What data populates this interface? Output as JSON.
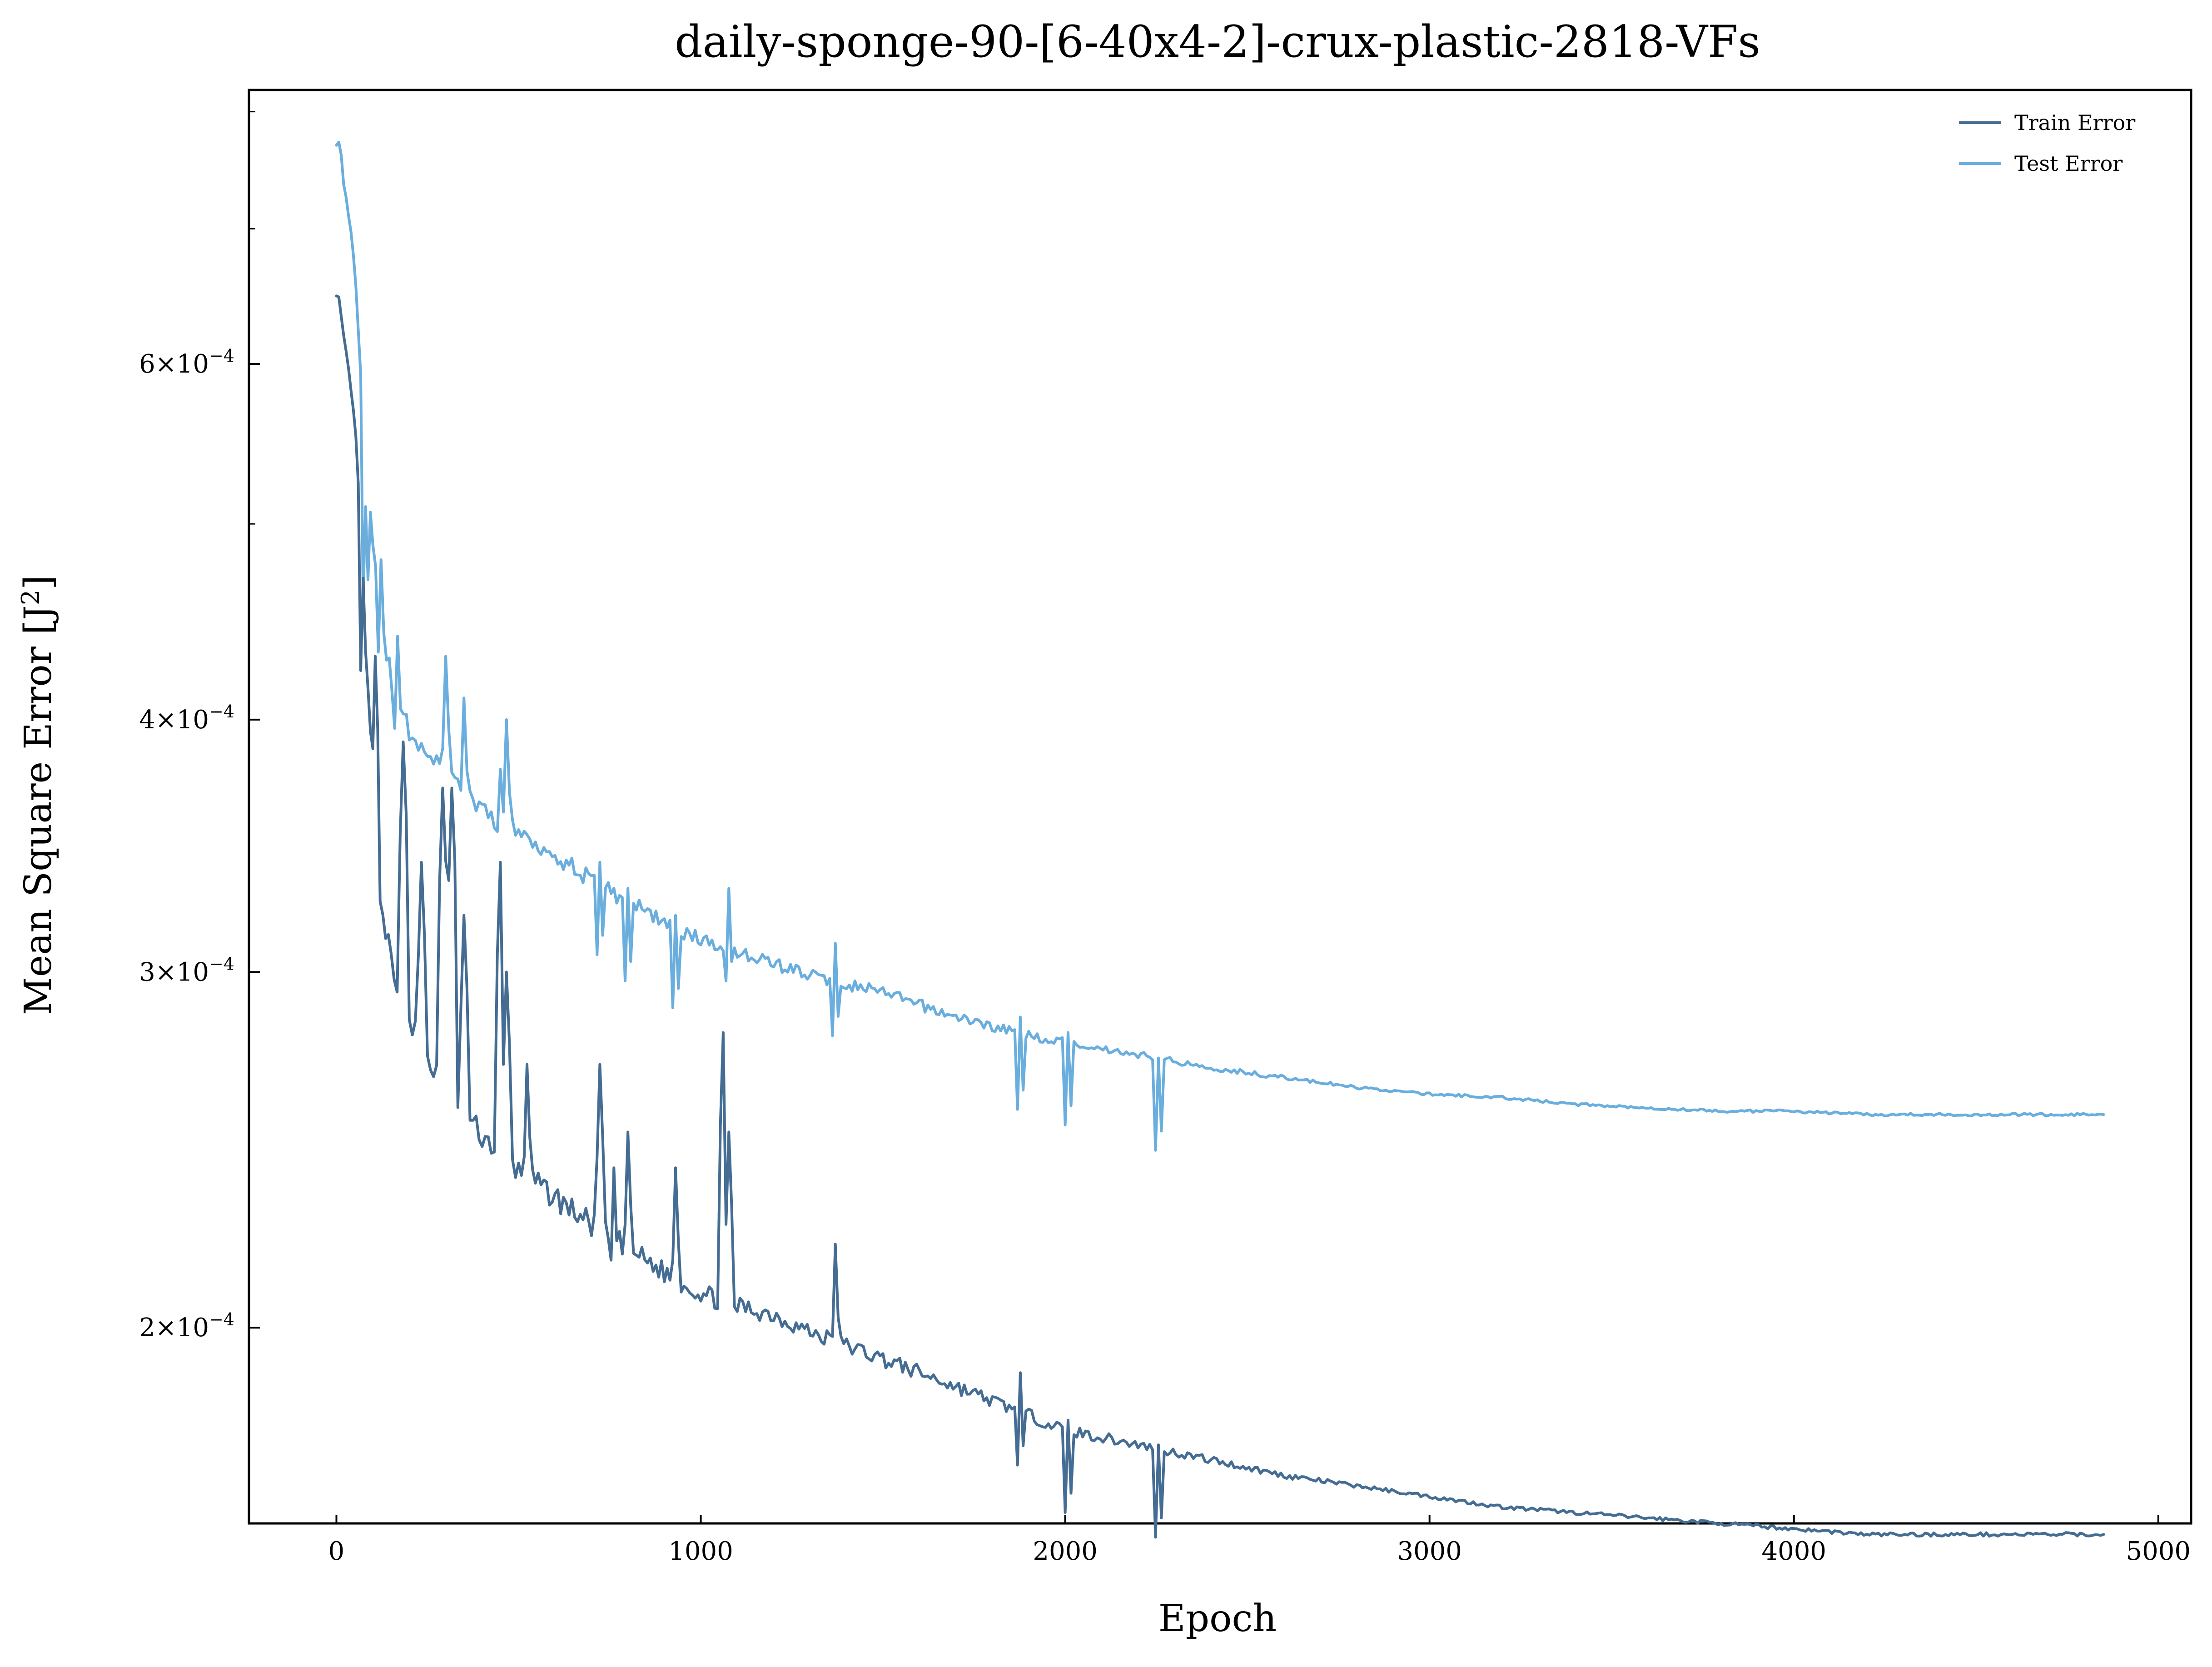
{
  "chart_data": {
    "type": "line",
    "title": "daily-sponge-90-[6-40x4-2]-crux-plastic-2818-VFs",
    "xlabel": "Epoch",
    "ylabel_main": "Mean Square Error [J",
    "ylabel_sup": "2",
    "ylabel_end": "]",
    "xlim": [
      -240,
      5090
    ],
    "ylim": [
      0.00016,
      0.00082
    ],
    "yscale": "log",
    "x_ticks": [
      0,
      1000,
      2000,
      3000,
      4000,
      5000
    ],
    "x_tick_labels": [
      "0",
      "1000",
      "2000",
      "3000",
      "4000",
      "5000"
    ],
    "y_major_ticks": [
      {
        "value": 0.0002,
        "mantissa": "2",
        "times": "×",
        "base": "10",
        "exponent": "−4"
      },
      {
        "value": 0.0003,
        "mantissa": "3",
        "times": "×",
        "base": "10",
        "exponent": "−4"
      },
      {
        "value": 0.0004,
        "mantissa": "4",
        "times": "×",
        "base": "10",
        "exponent": "−4"
      },
      {
        "value": 0.0006,
        "mantissa": "6",
        "times": "×",
        "base": "10",
        "exponent": "−4"
      }
    ],
    "y_minor_ticks": [
      0.0005,
      0.0007,
      0.0008
    ],
    "legend_position": "top-right",
    "grid": false,
    "series": [
      {
        "name": "Train Error",
        "color": "#456d93",
        "points": [
          [
            0,
            0.00066
          ],
          [
            20,
            0.00061
          ],
          [
            40,
            0.00058
          ],
          [
            60,
            0.00053
          ],
          [
            80,
            0.00044
          ],
          [
            100,
            0.00037
          ],
          [
            120,
            0.00032
          ],
          [
            150,
            0.000305
          ],
          [
            200,
            0.000285
          ],
          [
            250,
            0.000272
          ],
          [
            300,
            0.000262
          ],
          [
            350,
            0.000255
          ],
          [
            400,
            0.000249
          ],
          [
            450,
            0.000244
          ],
          [
            500,
            0.000239
          ],
          [
            600,
            0.000232
          ],
          [
            700,
            0.000225
          ],
          [
            800,
            0.000219
          ],
          [
            900,
            0.000213
          ],
          [
            1000,
            0.000208
          ],
          [
            1100,
            0.000205
          ],
          [
            1200,
            0.000203
          ],
          [
            1300,
            0.000199
          ],
          [
            1400,
            0.000196
          ],
          [
            1500,
            0.000193
          ],
          [
            1600,
            0.00019
          ],
          [
            1700,
            0.000187
          ],
          [
            1800,
            0.000184
          ],
          [
            1900,
            0.000181
          ],
          [
            2000,
            0.000178
          ],
          [
            2200,
            0.000175
          ],
          [
            2400,
            0.000172
          ],
          [
            2600,
            0.000169
          ],
          [
            2800,
            0.000167
          ],
          [
            3000,
            0.000165
          ],
          [
            3200,
            0.000163
          ],
          [
            3400,
            0.000162
          ],
          [
            3600,
            0.000161
          ],
          [
            3800,
            0.00016
          ],
          [
            4000,
            0.000159
          ],
          [
            4200,
            0.000158
          ],
          [
            4400,
            0.000158
          ],
          [
            4600,
            0.000158
          ],
          [
            4850,
            0.000158
          ]
        ]
      },
      {
        "name": "Test Error",
        "color": "#6aaede",
        "points": [
          [
            0,
            0.00078
          ],
          [
            20,
            0.00074
          ],
          [
            40,
            0.0007
          ],
          [
            60,
            0.00063
          ],
          [
            80,
            0.00054
          ],
          [
            100,
            0.00049
          ],
          [
            130,
            0.00044
          ],
          [
            160,
            0.00041
          ],
          [
            200,
            0.000395
          ],
          [
            250,
            0.000385
          ],
          [
            300,
            0.000375
          ],
          [
            350,
            0.000368
          ],
          [
            400,
            0.00036
          ],
          [
            450,
            0.000355
          ],
          [
            500,
            0.000352
          ],
          [
            600,
            0.000343
          ],
          [
            700,
            0.000333
          ],
          [
            800,
            0.000325
          ],
          [
            900,
            0.000318
          ],
          [
            1000,
            0.000311
          ],
          [
            1100,
            0.000307
          ],
          [
            1200,
            0.000303
          ],
          [
            1300,
            0.000299
          ],
          [
            1400,
            0.000296
          ],
          [
            1500,
            0.000293
          ],
          [
            1600,
            0.000289
          ],
          [
            1700,
            0.000285
          ],
          [
            1800,
            0.000282
          ],
          [
            1900,
            0.000279
          ],
          [
            2000,
            0.000277
          ],
          [
            2200,
            0.000273
          ],
          [
            2400,
            0.000269
          ],
          [
            2600,
            0.000266
          ],
          [
            2800,
            0.000263
          ],
          [
            3000,
            0.000261
          ],
          [
            3200,
            0.00026
          ],
          [
            3400,
            0.000258
          ],
          [
            3600,
            0.000257
          ],
          [
            3800,
            0.000256
          ],
          [
            4000,
            0.000256
          ],
          [
            4200,
            0.000255
          ],
          [
            4400,
            0.000255
          ],
          [
            4600,
            0.000255
          ],
          [
            4850,
            0.000255
          ]
        ]
      }
    ],
    "annotations": {
      "train_spikes": [
        [
          75,
          0.00047
        ],
        [
          110,
          0.00043
        ],
        [
          180,
          0.00039
        ],
        [
          230,
          0.00034
        ],
        [
          290,
          0.00037
        ],
        [
          320,
          0.00037
        ],
        [
          350,
          0.00032
        ],
        [
          450,
          0.00034
        ],
        [
          470,
          0.0003
        ],
        [
          520,
          0.00027
        ],
        [
          720,
          0.00027
        ],
        [
          760,
          0.00024
        ],
        [
          800,
          0.00025
        ],
        [
          930,
          0.00024
        ],
        [
          1060,
          0.00028
        ],
        [
          1080,
          0.00025
        ],
        [
          1370,
          0.00022
        ],
        [
          1880,
          0.00019
        ],
        [
          2010,
          0.00018
        ],
        [
          2260,
          0.000175
        ]
      ],
      "test_spikes": [
        [
          80,
          0.00051
        ],
        [
          120,
          0.00048
        ],
        [
          170,
          0.00044
        ],
        [
          300,
          0.00043
        ],
        [
          350,
          0.00041
        ],
        [
          460,
          0.00042
        ],
        [
          470,
          0.0004
        ],
        [
          720,
          0.00034
        ],
        [
          800,
          0.00033
        ],
        [
          930,
          0.00032
        ],
        [
          1080,
          0.00033
        ],
        [
          1370,
          0.00031
        ],
        [
          1880,
          0.000285
        ],
        [
          2010,
          0.00028
        ],
        [
          2260,
          0.000272
        ]
      ]
    }
  }
}
